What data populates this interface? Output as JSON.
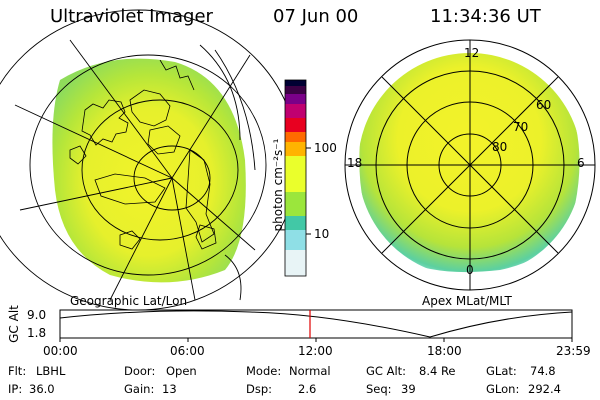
{
  "header": {
    "instrument": "Ultraviolet Imager",
    "date": "07 Jun 00",
    "time": "11:34:36 UT"
  },
  "left_panel": {
    "caption": "Geographic Lat/Lon"
  },
  "right_panel": {
    "caption": "Apex MLat/MLT",
    "mlt_labels": [
      "12",
      "18",
      "6",
      "0"
    ],
    "mlat_labels": [
      "60",
      "70",
      "80"
    ]
  },
  "colorbar": {
    "unit_label": "photon cm⁻²s⁻¹",
    "ticks": [
      "100",
      "10"
    ],
    "colors": [
      "#000033",
      "#3b0044",
      "#7a0088",
      "#c00070",
      "#e80020",
      "#ff6a00",
      "#ffb400",
      "#eaff2c",
      "#9be63c",
      "#42c8a6",
      "#8fdfe6",
      "#e8f4f6"
    ]
  },
  "timeline": {
    "y_label": "GC Alt",
    "y_ticks": [
      "9.0",
      "1.8"
    ],
    "x_ticks": [
      "00:00",
      "06:00",
      "12:00",
      "18:00",
      "23:59"
    ],
    "marker_color": "#e00000"
  },
  "status": {
    "flt_label": "Flt:",
    "flt_value": "LBHL",
    "door_label": "Door:",
    "door_value": "Open",
    "mode_label": "Mode:",
    "mode_value": "Normal",
    "gcalt_label": "GC Alt:",
    "gcalt_value": "8.4 Re",
    "glat_label": "GLat:",
    "glat_value": "74.8",
    "ip_label": "IP:",
    "ip_value": "36.0",
    "gain_label": "Gain:",
    "gain_value": "13",
    "dsp_label": "Dsp:",
    "dsp_value": "2.6",
    "seq_label": "Seq:",
    "seq_value": "39",
    "glon_label": "GLon:",
    "glon_value": "292.4"
  }
}
